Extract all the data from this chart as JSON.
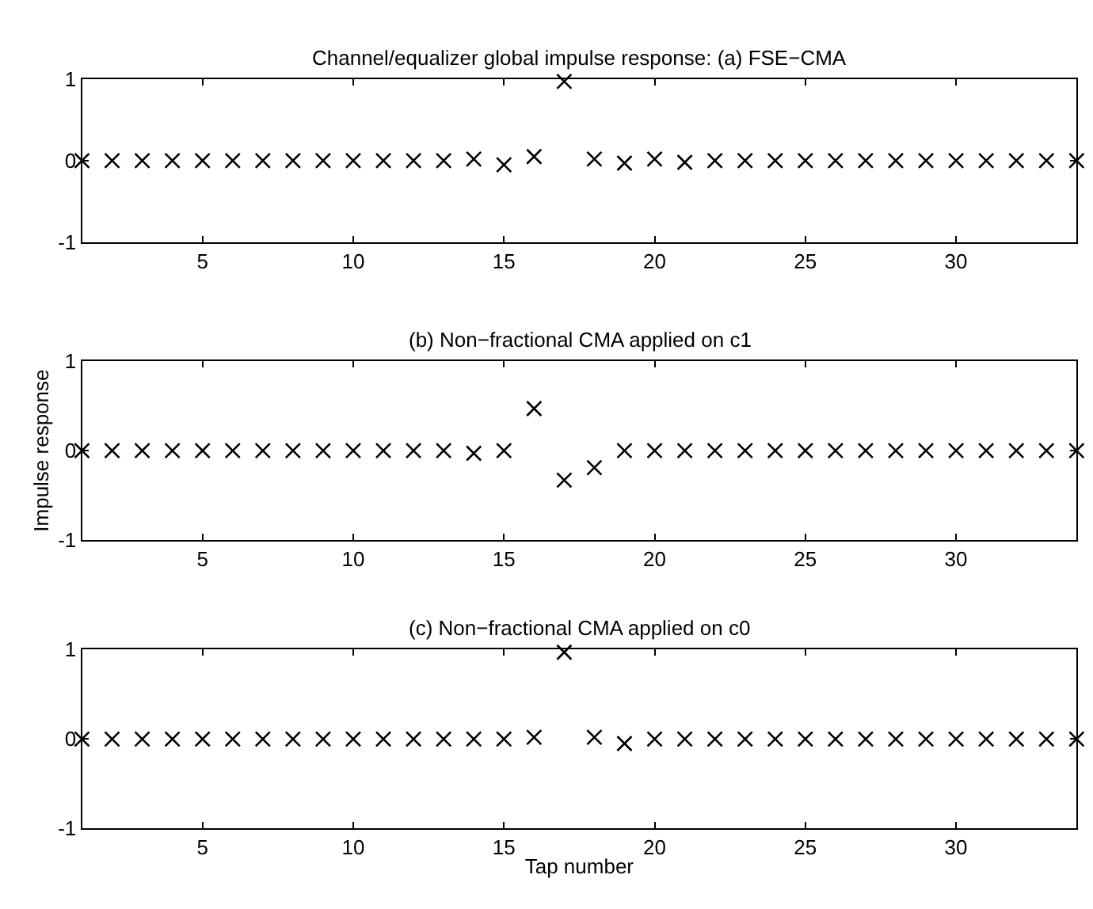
{
  "chart_data": [
    {
      "type": "scatter",
      "title": "Channel/equalizer global impulse response: (a) FSE−CMA",
      "x": [
        1,
        2,
        3,
        4,
        5,
        6,
        7,
        8,
        9,
        10,
        11,
        12,
        13,
        14,
        15,
        16,
        17,
        18,
        19,
        20,
        21,
        22,
        23,
        24,
        25,
        26,
        27,
        28,
        29,
        30,
        31,
        32,
        33,
        34
      ],
      "values": [
        0,
        0,
        0,
        0,
        0,
        0,
        0,
        0,
        0,
        0,
        0,
        0,
        0,
        0.02,
        -0.05,
        0.05,
        0.97,
        0.02,
        -0.03,
        0.02,
        -0.02,
        0,
        0,
        0,
        0,
        0,
        0,
        0,
        0,
        0,
        0,
        0,
        0,
        0
      ],
      "color": "#000000",
      "marker": "cross",
      "xlim": [
        1,
        34
      ],
      "xticks": [
        5,
        10,
        15,
        20,
        25,
        30
      ],
      "ylim": [
        -1,
        1
      ],
      "yticks": [
        -1,
        0,
        1
      ]
    },
    {
      "type": "scatter",
      "title": "(b) Non−fractional CMA applied on c1",
      "ylabel": "Impulse response",
      "x": [
        1,
        2,
        3,
        4,
        5,
        6,
        7,
        8,
        9,
        10,
        11,
        12,
        13,
        14,
        15,
        16,
        17,
        18,
        19,
        20,
        21,
        22,
        23,
        24,
        25,
        26,
        27,
        28,
        29,
        30,
        31,
        32,
        33,
        34
      ],
      "values": [
        0,
        0,
        0,
        0,
        0,
        0,
        0,
        0,
        0,
        0,
        0,
        0,
        0,
        -0.03,
        0,
        0.47,
        -0.33,
        -0.19,
        0,
        0,
        0,
        0,
        0,
        0,
        0,
        0,
        0,
        0,
        0,
        0,
        0,
        0,
        0,
        0
      ],
      "color": "#000000",
      "marker": "cross",
      "xlim": [
        1,
        34
      ],
      "xticks": [
        5,
        10,
        15,
        20,
        25,
        30
      ],
      "ylim": [
        -1,
        1
      ],
      "yticks": [
        -1,
        0,
        1
      ]
    },
    {
      "type": "scatter",
      "title": "(c) Non−fractional CMA applied on c0",
      "xlabel": "Tap number",
      "x": [
        1,
        2,
        3,
        4,
        5,
        6,
        7,
        8,
        9,
        10,
        11,
        12,
        13,
        14,
        15,
        16,
        17,
        18,
        19,
        20,
        21,
        22,
        23,
        24,
        25,
        26,
        27,
        28,
        29,
        30,
        31,
        32,
        33,
        34
      ],
      "values": [
        0,
        0,
        0,
        0,
        0,
        0,
        0,
        0,
        0,
        0,
        0,
        0,
        0,
        0,
        0,
        0.02,
        0.97,
        0.02,
        -0.05,
        0,
        0,
        0,
        0,
        0,
        0,
        0,
        0,
        0,
        0,
        0,
        0,
        0,
        0,
        0
      ],
      "color": "#000000",
      "marker": "cross",
      "xlim": [
        1,
        34
      ],
      "xticks": [
        5,
        10,
        15,
        20,
        25,
        30
      ],
      "ylim": [
        -1,
        1
      ],
      "yticks": [
        -1,
        0,
        1
      ]
    }
  ]
}
